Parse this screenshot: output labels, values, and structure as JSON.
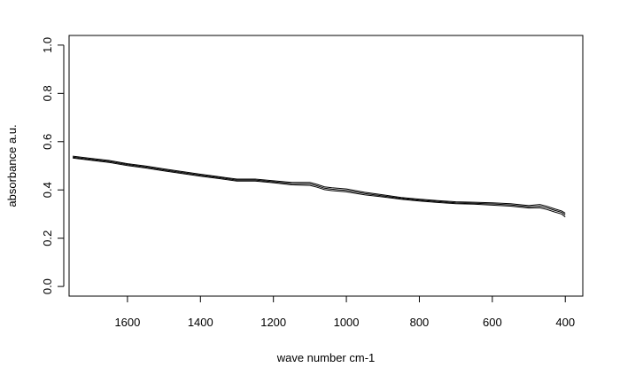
{
  "chart_data": {
    "type": "line",
    "xlabel": "wave number cm-1",
    "ylabel": "absorbance a.u.",
    "xlim": [
      1760,
      352
    ],
    "ylim": [
      -0.04,
      1.04
    ],
    "x_ticks": [
      1600,
      1400,
      1200,
      1000,
      800,
      600,
      400
    ],
    "y_ticks": [
      0.0,
      0.2,
      0.4,
      0.6,
      0.8,
      1.0
    ],
    "x_tick_labels": [
      "1600",
      "1400",
      "1200",
      "1000",
      "800",
      "600",
      "400"
    ],
    "y_tick_labels": [
      "0.0",
      "0.2",
      "0.4",
      "0.6",
      "0.8",
      "1.0"
    ],
    "grid": false,
    "series": [
      {
        "x": [
          1750,
          1700,
          1650,
          1600,
          1550,
          1500,
          1450,
          1400,
          1350,
          1300,
          1250,
          1200,
          1150,
          1100,
          1080,
          1060,
          1040,
          1000,
          950,
          900,
          850,
          800,
          750,
          700,
          650,
          600,
          550,
          500,
          470,
          450,
          430,
          410,
          400
        ],
        "values": [
          0.54,
          0.531,
          0.522,
          0.509,
          0.499,
          0.487,
          0.476,
          0.465,
          0.455,
          0.445,
          0.445,
          0.438,
          0.431,
          0.431,
          0.423,
          0.413,
          0.409,
          0.404,
          0.39,
          0.38,
          0.369,
          0.362,
          0.356,
          0.351,
          0.349,
          0.347,
          0.343,
          0.335,
          0.34,
          0.332,
          0.322,
          0.313,
          0.304
        ]
      },
      {
        "x": [
          1750,
          1700,
          1650,
          1600,
          1550,
          1500,
          1450,
          1400,
          1350,
          1300,
          1250,
          1200,
          1150,
          1100,
          1080,
          1060,
          1040,
          1000,
          950,
          900,
          850,
          800,
          750,
          700,
          650,
          600,
          550,
          500,
          470,
          450,
          430,
          410,
          400
        ],
        "values": [
          0.536,
          0.527,
          0.518,
          0.505,
          0.495,
          0.483,
          0.472,
          0.461,
          0.451,
          0.441,
          0.441,
          0.434,
          0.426,
          0.425,
          0.417,
          0.407,
          0.403,
          0.398,
          0.385,
          0.375,
          0.365,
          0.358,
          0.352,
          0.347,
          0.345,
          0.342,
          0.338,
          0.33,
          0.333,
          0.326,
          0.316,
          0.307,
          0.297
        ]
      },
      {
        "x": [
          1750,
          1700,
          1650,
          1600,
          1550,
          1500,
          1450,
          1400,
          1350,
          1300,
          1250,
          1200,
          1150,
          1100,
          1080,
          1060,
          1040,
          1000,
          950,
          900,
          850,
          800,
          750,
          700,
          650,
          600,
          550,
          500,
          470,
          450,
          430,
          410,
          400
        ],
        "values": [
          0.532,
          0.523,
          0.514,
          0.501,
          0.491,
          0.479,
          0.468,
          0.457,
          0.447,
          0.437,
          0.437,
          0.43,
          0.421,
          0.419,
          0.411,
          0.401,
          0.397,
          0.392,
          0.38,
          0.371,
          0.361,
          0.354,
          0.348,
          0.343,
          0.341,
          0.337,
          0.333,
          0.325,
          0.326,
          0.319,
          0.309,
          0.3,
          0.288
        ]
      }
    ]
  }
}
